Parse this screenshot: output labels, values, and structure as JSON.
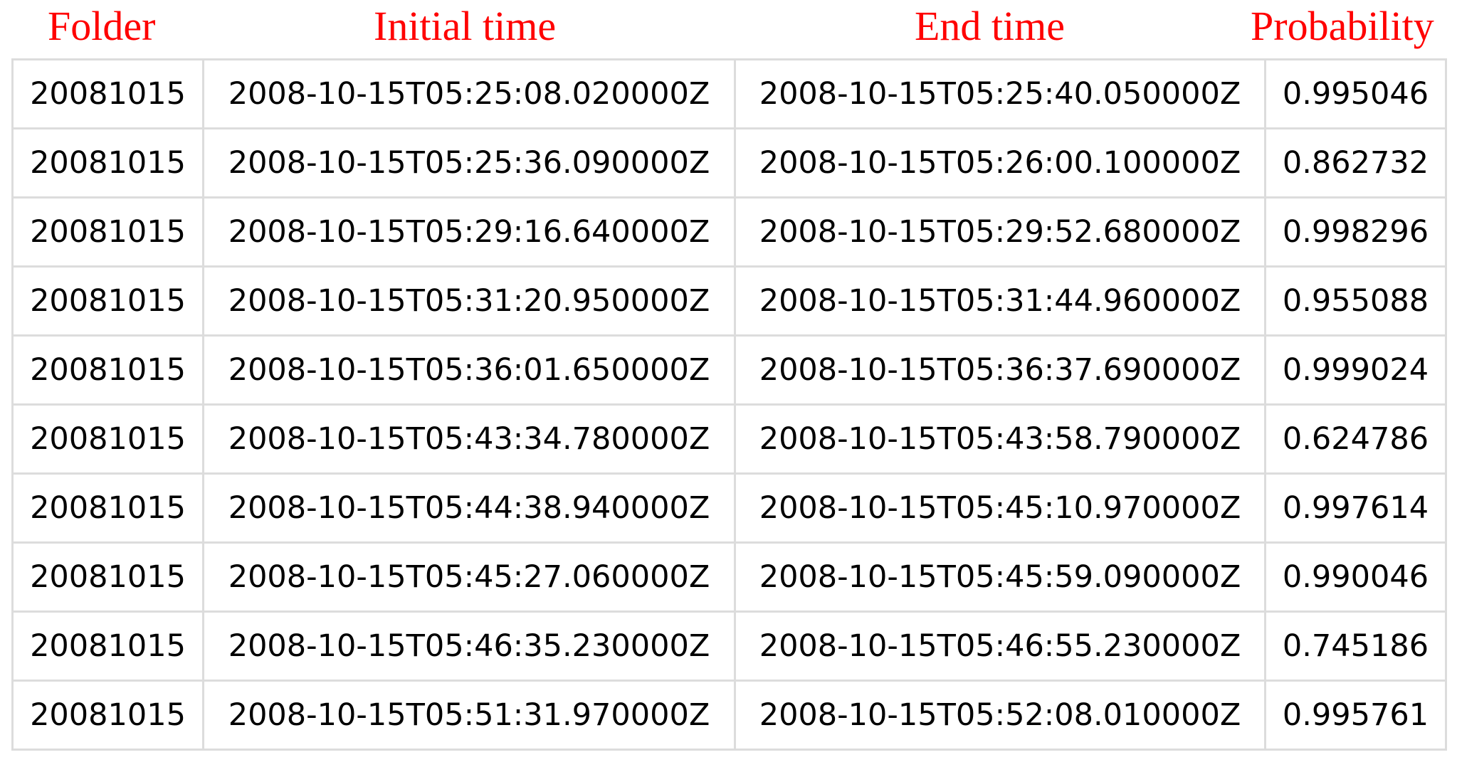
{
  "header_color": "#ff0000",
  "headers": {
    "folder": "Folder",
    "initial_time": "Initial time",
    "end_time": "End time",
    "probability": "Probability"
  },
  "rows": [
    {
      "folder": "20081015",
      "initial_time": "2008-10-15T05:25:08.020000Z",
      "end_time": "2008-10-15T05:25:40.050000Z",
      "probability": "0.995046"
    },
    {
      "folder": "20081015",
      "initial_time": "2008-10-15T05:25:36.090000Z",
      "end_time": "2008-10-15T05:26:00.100000Z",
      "probability": "0.862732"
    },
    {
      "folder": "20081015",
      "initial_time": "2008-10-15T05:29:16.640000Z",
      "end_time": "2008-10-15T05:29:52.680000Z",
      "probability": "0.998296"
    },
    {
      "folder": "20081015",
      "initial_time": "2008-10-15T05:31:20.950000Z",
      "end_time": "2008-10-15T05:31:44.960000Z",
      "probability": "0.955088"
    },
    {
      "folder": "20081015",
      "initial_time": "2008-10-15T05:36:01.650000Z",
      "end_time": "2008-10-15T05:36:37.690000Z",
      "probability": "0.999024"
    },
    {
      "folder": "20081015",
      "initial_time": "2008-10-15T05:43:34.780000Z",
      "end_time": "2008-10-15T05:43:58.790000Z",
      "probability": "0.624786"
    },
    {
      "folder": "20081015",
      "initial_time": "2008-10-15T05:44:38.940000Z",
      "end_time": "2008-10-15T05:45:10.970000Z",
      "probability": "0.997614"
    },
    {
      "folder": "20081015",
      "initial_time": "2008-10-15T05:45:27.060000Z",
      "end_time": "2008-10-15T05:45:59.090000Z",
      "probability": "0.990046"
    },
    {
      "folder": "20081015",
      "initial_time": "2008-10-15T05:46:35.230000Z",
      "end_time": "2008-10-15T05:46:55.230000Z",
      "probability": "0.745186"
    },
    {
      "folder": "20081015",
      "initial_time": "2008-10-15T05:51:31.970000Z",
      "end_time": "2008-10-15T05:52:08.010000Z",
      "probability": "0.995761"
    }
  ]
}
